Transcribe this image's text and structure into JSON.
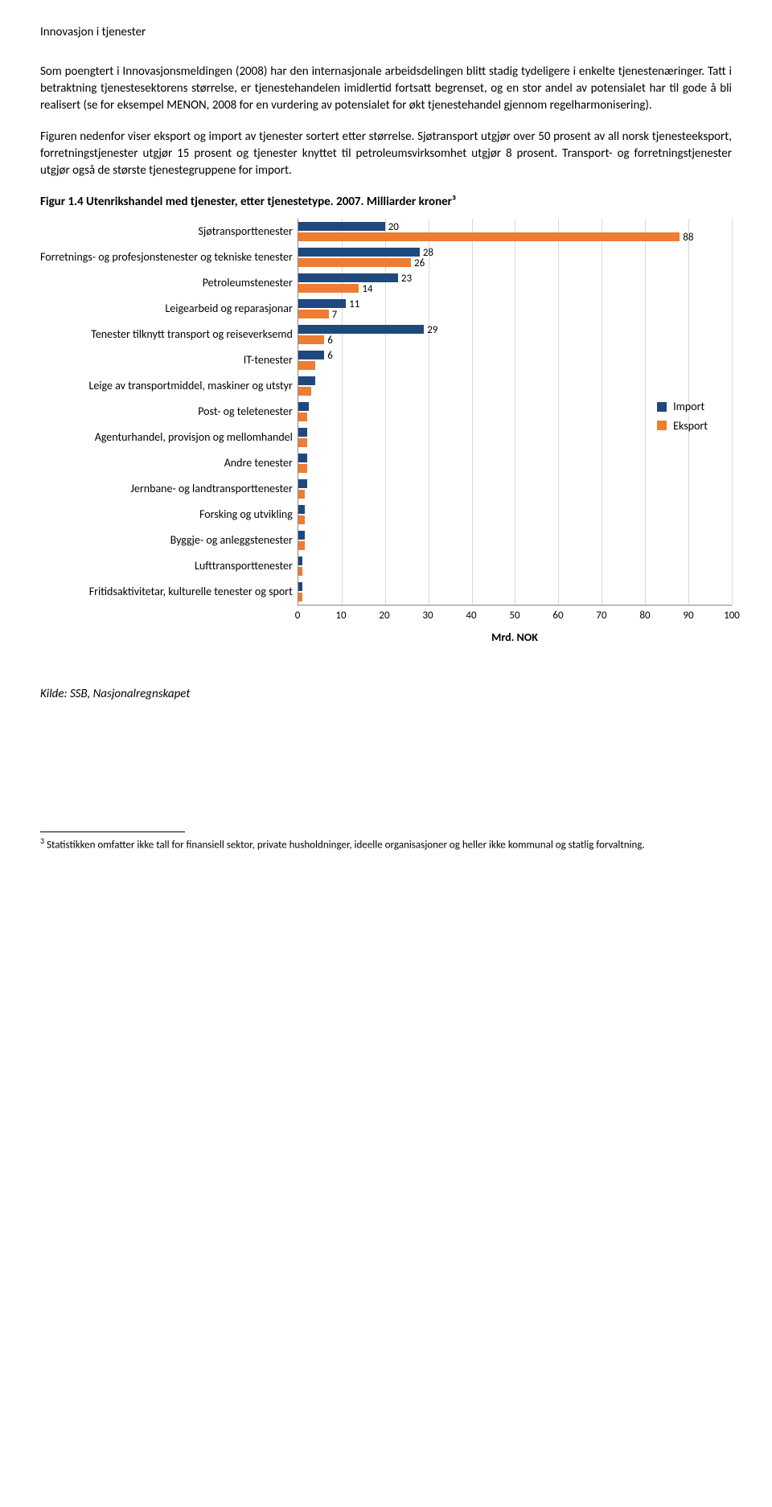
{
  "title": "Innovasjon i tjenester",
  "paragraphs": {
    "p1": "Som poengtert i Innovasjonsmeldingen (2008) har den internasjonale arbeidsdelingen blitt stadig tydeligere i enkelte tjenestenæringer. Tatt i betraktning tjenestesektorens størrelse, er tjenestehandelen imidlertid fortsatt begrenset, og en stor andel av potensialet har til gode å bli realisert (se for eksempel MENON, 2008 for en vurdering av potensialet for økt tjenestehandel gjennom regelharmonisering).",
    "p2": "Figuren nedenfor viser eksport og import av tjenester sortert etter størrelse. Sjøtransport utgjør over 50 prosent av all norsk tjenesteeksport, forretningstjenester utgjør 15 prosent og tjenester knyttet til petroleumsvirksomhet utgjør 8 prosent. Transport- og forretningstjenester utgjør også de største tjenestegruppene for import."
  },
  "figure_title": "Figur 1.4 Utenrikshandel med tjenester, etter tjenestetype. 2007. Milliarder kroner³",
  "chart": {
    "type": "bar",
    "orientation": "horizontal",
    "categories": [
      "Sjøtransporttenester",
      "Forretnings- og profesjonstenester og tekniske tenester",
      "Petroleumstenester",
      "Leigearbeid og reparasjonar",
      "Tenester tilknytt transport og reiseverksemd",
      "IT-tenester",
      "Leige av transportmiddel, maskiner og utstyr",
      "Post- og teletenester",
      "Agenturhandel, provisjon og mellomhandel",
      "Andre tenester",
      "Jernbane- og landtransporttenester",
      "Forsking og utvikling",
      "Byggje- og anleggstenester",
      "Lufttransporttenester",
      "Fritidsaktivitetar, kulturelle tenester og sport"
    ],
    "series": [
      {
        "name": "Import",
        "color": "#1f497d",
        "values": [
          20,
          28,
          23,
          11,
          29,
          6,
          4,
          2.5,
          2,
          2,
          2,
          1.5,
          1.5,
          1,
          1
        ],
        "show_label": [
          true,
          true,
          true,
          true,
          true,
          true,
          false,
          false,
          false,
          false,
          false,
          false,
          false,
          false,
          false
        ]
      },
      {
        "name": "Eksport",
        "color": "#ed7d31",
        "values": [
          88,
          26,
          14,
          7,
          6,
          4,
          3,
          2,
          2,
          2,
          1.5,
          1.5,
          1.5,
          1,
          1
        ],
        "show_label": [
          true,
          true,
          true,
          true,
          true,
          false,
          false,
          false,
          false,
          false,
          false,
          false,
          false,
          false,
          false
        ]
      }
    ],
    "xlim": [
      0,
      100
    ],
    "xtick_step": 10,
    "x_title": "Mrd. NOK",
    "grid_color": "#d9d9d9",
    "background_color": "#ffffff",
    "label_fontsize": 14,
    "tick_fontsize": 13,
    "legend_position": "right-middle"
  },
  "legend": {
    "import": "Import",
    "eksport": "Eksport"
  },
  "source": "Kilde: SSB, Nasjonalregnskapet",
  "footnote": "Statistikken omfatter ikke tall for finansiell sektor, private husholdninger, ideelle organisasjoner og heller ikke kommunal og statlig forvaltning.",
  "footnote_marker": "3"
}
